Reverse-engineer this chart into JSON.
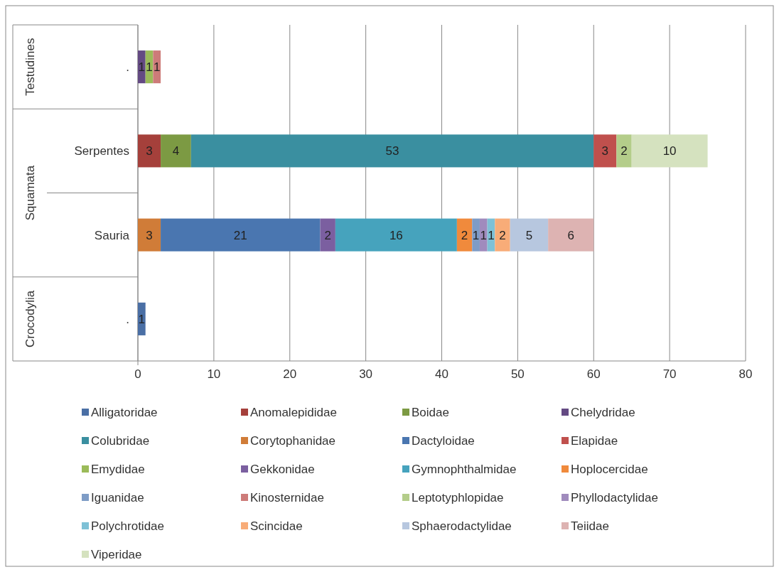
{
  "chart_data": {
    "type": "bar",
    "orientation": "horizontal",
    "stacked": true,
    "categories": [
      ".",
      "Serpentes",
      "Sauria",
      "."
    ],
    "annotations": [
      "Testudines",
      "Squamata",
      "Crocodylia"
    ],
    "xlim": [
      0,
      80
    ],
    "xticks": [
      0,
      10,
      20,
      30,
      40,
      50,
      60,
      70,
      80
    ],
    "grid": "x",
    "legend": "bottom",
    "data_labels": true,
    "series": [
      {
        "name": "Alligatoridae",
        "color": "#4a6fa5",
        "values": [
          null,
          null,
          null,
          1
        ]
      },
      {
        "name": "Anomalepididae",
        "color": "#a5403b",
        "values": [
          null,
          3,
          null,
          null
        ]
      },
      {
        "name": "Boidae",
        "color": "#7c9a43",
        "values": [
          null,
          4,
          null,
          null
        ]
      },
      {
        "name": "Chelydridae",
        "color": "#644a83",
        "values": [
          1,
          null,
          null,
          null
        ]
      },
      {
        "name": "Colubridae",
        "color": "#3a8fa0",
        "values": [
          null,
          53,
          null,
          null
        ]
      },
      {
        "name": "Corytophanidae",
        "color": "#d07c38",
        "values": [
          null,
          null,
          3,
          null
        ]
      },
      {
        "name": "Dactyloidae",
        "color": "#4a76b0",
        "values": [
          null,
          null,
          21,
          null
        ]
      },
      {
        "name": "Elapidae",
        "color": "#c0504d",
        "values": [
          null,
          3,
          null,
          null
        ]
      },
      {
        "name": "Emydidae",
        "color": "#9bbb59",
        "values": [
          1,
          null,
          null,
          null
        ]
      },
      {
        "name": "Gekkonidae",
        "color": "#7b5fa0",
        "values": [
          null,
          null,
          2,
          null
        ]
      },
      {
        "name": "Gymnophthalmidae",
        "color": "#46a3bd",
        "values": [
          null,
          null,
          16,
          null
        ]
      },
      {
        "name": "Hoplocercidae",
        "color": "#f08a3c",
        "values": [
          null,
          null,
          2,
          null
        ]
      },
      {
        "name": "Iguanidae",
        "color": "#7e9cc6",
        "values": [
          null,
          null,
          1,
          null
        ]
      },
      {
        "name": "Kinosternidae",
        "color": "#cd7b79",
        "values": [
          1,
          null,
          null,
          null
        ]
      },
      {
        "name": "Leptotyphlopidae",
        "color": "#b4cd8a",
        "values": [
          null,
          2,
          null,
          null
        ]
      },
      {
        "name": "Phyllodactylidae",
        "color": "#a08bbd",
        "values": [
          null,
          null,
          1,
          null
        ]
      },
      {
        "name": "Polychrotidae",
        "color": "#7ec1d6",
        "values": [
          null,
          null,
          1,
          null
        ]
      },
      {
        "name": "Scincidae",
        "color": "#f8ac78",
        "values": [
          null,
          null,
          2,
          null
        ]
      },
      {
        "name": "Sphaerodactylidae",
        "color": "#b7c7df",
        "values": [
          null,
          null,
          5,
          null
        ]
      },
      {
        "name": "Teiidae",
        "color": "#ddb3b2",
        "values": [
          null,
          null,
          6,
          null
        ]
      },
      {
        "name": "Viperidae",
        "color": "#d5e2bf",
        "values": [
          null,
          10,
          null,
          null
        ]
      }
    ]
  }
}
